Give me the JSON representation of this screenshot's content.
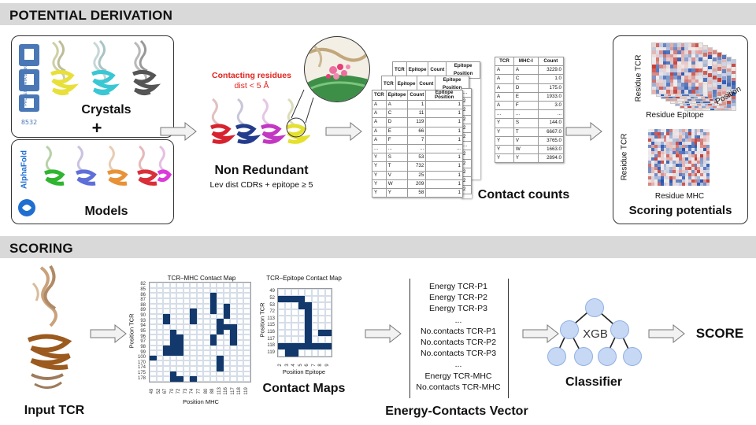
{
  "sections": {
    "derivation": "POTENTIAL DERIVATION",
    "scoring": "SCORING"
  },
  "derivation": {
    "crystals_label": "Crystals",
    "plus": "+",
    "models_label": "Models",
    "pdb_logo": "PDB",
    "pdb_sub": "PROTEIN DATA BANK",
    "alphafold_logo": "AlphaFold",
    "contacting_title": "Contacting residues",
    "contacting_dist": "dist < 5 Å",
    "non_redundant": "Non Redundant",
    "lev_dist": "Lev dist CDRs + epitope ≥ 5",
    "contact_counts": "Contact counts",
    "scoring_potentials": "Scoring  potentials",
    "hm_top_ylabel": "Residue TCR",
    "hm_top_xlabel": "Residue Epitope",
    "hm_top_zlabel": "Position",
    "hm_bot_ylabel": "Residue TCR",
    "hm_bot_xlabel": "Residue MHC",
    "epitope_table": {
      "back_headers": [
        "TCR",
        "Epitope",
        "Count",
        "Epitope Position"
      ],
      "headers": [
        "TCR",
        "Epitope",
        "Count",
        "Epitope Position"
      ],
      "rows": [
        [
          "A",
          "A",
          "1",
          "1"
        ],
        [
          "A",
          "C",
          "11",
          "1"
        ],
        [
          "A",
          "D",
          "119",
          "1"
        ],
        [
          "A",
          "E",
          "66",
          "1"
        ],
        [
          "A",
          "F",
          "7",
          "1"
        ],
        [
          "...",
          "...",
          "...",
          "..."
        ],
        [
          "Y",
          "S",
          "53",
          "1"
        ],
        [
          "Y",
          "T",
          "732",
          "1"
        ],
        [
          "Y",
          "V",
          "25",
          "1"
        ],
        [
          "Y",
          "W",
          "209",
          "1"
        ],
        [
          "Y",
          "Y",
          "58",
          "1"
        ]
      ],
      "side_col": [
        "2",
        "2",
        "2",
        "2",
        "2",
        "...",
        "2",
        "2",
        "2",
        "2",
        "2"
      ],
      "dots": "..."
    },
    "mhc_table": {
      "headers": [
        "TCR",
        "MHC-I",
        "Count"
      ],
      "rows": [
        [
          "A",
          "A",
          "3229.0"
        ],
        [
          "A",
          "C",
          "1.0"
        ],
        [
          "A",
          "D",
          "175.0"
        ],
        [
          "A",
          "E",
          "1933.0"
        ],
        [
          "A",
          "F",
          "3.0"
        ],
        [
          "...",
          "...",
          "..."
        ],
        [
          "Y",
          "S",
          "144.0"
        ],
        [
          "Y",
          "T",
          "6667.0"
        ],
        [
          "Y",
          "V",
          "3765.0"
        ],
        [
          "Y",
          "W",
          "1663.0"
        ],
        [
          "Y",
          "Y",
          "2894.0"
        ]
      ]
    }
  },
  "scoring": {
    "input_tcr": "Input TCR",
    "contact_maps_label": "Contact Maps",
    "mhc_map": {
      "title": "TCR–MHC Contact Map",
      "ylabel": "Position TCR",
      "xlabel": "Position MHC",
      "y_ticks": [
        "82",
        "85",
        "86",
        "87",
        "88",
        "89",
        "90",
        "93",
        "94",
        "95",
        "96",
        "97",
        "98",
        "99",
        "100",
        "170",
        "174",
        "175",
        "178"
      ],
      "x_ticks": [
        "49",
        "52",
        "67",
        "70",
        "72",
        "73",
        "74",
        "77",
        "80",
        "88",
        "113",
        "116",
        "117",
        "118",
        "119"
      ],
      "on": [
        [
          2,
          9
        ],
        [
          3,
          9
        ],
        [
          4,
          9
        ],
        [
          5,
          9
        ],
        [
          4,
          11
        ],
        [
          5,
          11
        ],
        [
          6,
          11
        ],
        [
          5,
          6
        ],
        [
          6,
          6
        ],
        [
          7,
          6
        ],
        [
          6,
          2
        ],
        [
          7,
          2
        ],
        [
          7,
          10
        ],
        [
          8,
          10
        ],
        [
          8,
          11
        ],
        [
          8,
          12
        ],
        [
          9,
          10
        ],
        [
          9,
          12
        ],
        [
          10,
          9
        ],
        [
          10,
          12
        ],
        [
          11,
          9
        ],
        [
          11,
          12
        ],
        [
          9,
          3
        ],
        [
          10,
          3
        ],
        [
          11,
          3
        ],
        [
          12,
          3
        ],
        [
          13,
          3
        ],
        [
          10,
          4
        ],
        [
          11,
          4
        ],
        [
          12,
          4
        ],
        [
          13,
          4
        ],
        [
          12,
          2
        ],
        [
          13,
          2
        ],
        [
          14,
          0
        ],
        [
          14,
          10
        ],
        [
          15,
          10
        ],
        [
          16,
          10
        ],
        [
          17,
          3
        ],
        [
          18,
          3
        ],
        [
          18,
          4
        ],
        [
          18,
          6
        ]
      ]
    },
    "epitope_map": {
      "title": "TCR–Epitope Contact Map",
      "ylabel": "Position TCR",
      "xlabel": "Position Epitope",
      "y_ticks": [
        "49",
        "52",
        "53",
        "72",
        "113",
        "115",
        "116",
        "117",
        "118",
        "119"
      ],
      "x_ticks": [
        "2",
        "3",
        "4",
        "5",
        "6",
        "7",
        "8",
        "9"
      ],
      "on": [
        [
          1,
          0
        ],
        [
          1,
          1
        ],
        [
          1,
          2
        ],
        [
          1,
          3
        ],
        [
          2,
          3
        ],
        [
          2,
          4
        ],
        [
          3,
          4
        ],
        [
          4,
          4
        ],
        [
          5,
          4
        ],
        [
          6,
          4
        ],
        [
          6,
          6
        ],
        [
          6,
          7
        ],
        [
          7,
          4
        ],
        [
          8,
          0
        ],
        [
          8,
          1
        ],
        [
          8,
          2
        ],
        [
          8,
          3
        ],
        [
          8,
          4
        ],
        [
          8,
          5
        ],
        [
          8,
          6
        ],
        [
          8,
          7
        ],
        [
          9,
          1
        ],
        [
          9,
          2
        ]
      ]
    },
    "vector_items": [
      "Energy TCR-P1",
      "Energy TCR-P2",
      "Energy TCR-P3",
      "...",
      "No.contacts TCR-P1",
      "No.contacts TCR-P2",
      "No.contacts TCR-P3",
      "...",
      "Energy TCR-MHC",
      "No.contacts TCR-MHC"
    ],
    "vector_label": "Energy-Contacts Vector",
    "xgb": "XGB",
    "classifier": "Classifier",
    "score": "SCORE"
  },
  "colors": {
    "banner": "#d9d9d9",
    "contact_on": "#13386b",
    "red_text": "#e0231e",
    "heat_neg": "#2a56b0",
    "heat_pos": "#c63a32"
  }
}
